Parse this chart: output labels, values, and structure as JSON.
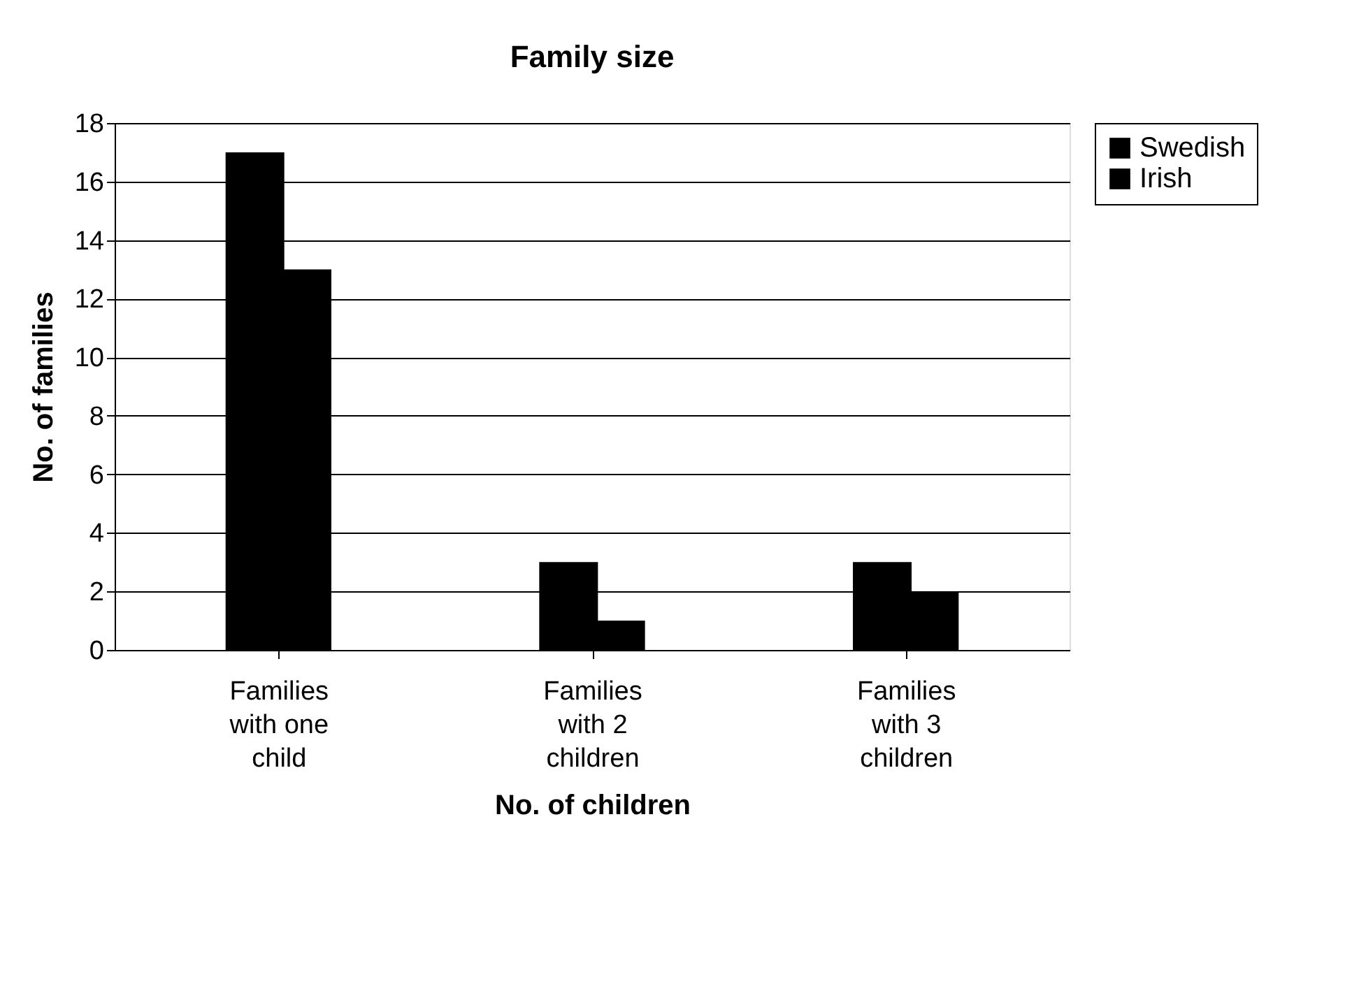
{
  "chart_data": {
    "type": "bar",
    "title": "Family size",
    "xlabel": "No. of children",
    "ylabel": "No. of families",
    "categories": [
      "Families\nwith one\nchild",
      "Families\nwith 2\nchildren",
      "Families\nwith 3\nchildren"
    ],
    "series": [
      {
        "name": "Swedish",
        "color": "#000000",
        "values": [
          17,
          3,
          3
        ]
      },
      {
        "name": "Irish",
        "color": "#000000",
        "values": [
          13,
          1,
          2
        ]
      }
    ],
    "ylim": [
      0,
      18
    ],
    "yticks": [
      0,
      2,
      4,
      6,
      8,
      10,
      12,
      14,
      16,
      18
    ],
    "grid": "y",
    "legend": "right"
  }
}
